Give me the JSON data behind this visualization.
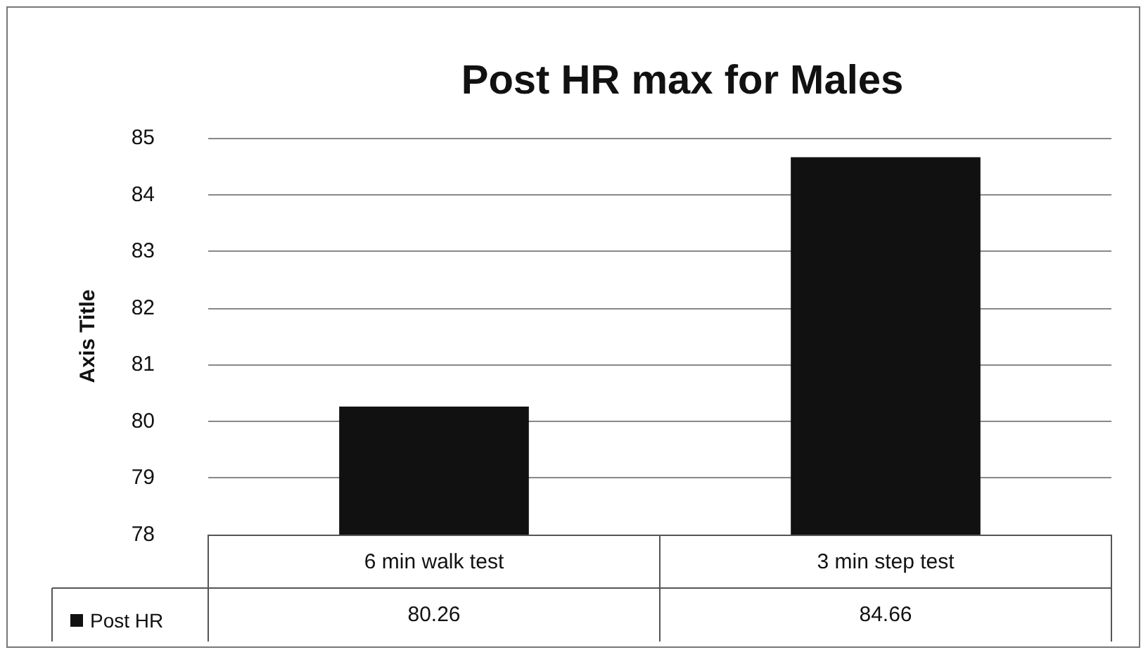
{
  "chart_data": {
    "type": "bar",
    "title": "Post HR max for Males",
    "ylabel": "Axis Title",
    "categories": [
      "6 min walk test",
      "3 min step test"
    ],
    "series": [
      {
        "name": "Post HR",
        "color": "#111111",
        "values": [
          80.26,
          84.66
        ]
      }
    ],
    "ylim": [
      78,
      85
    ],
    "yticks": [
      78,
      79,
      80,
      81,
      82,
      83,
      84,
      85
    ],
    "grid": "y",
    "legend": "bottom",
    "data_labels": true
  }
}
